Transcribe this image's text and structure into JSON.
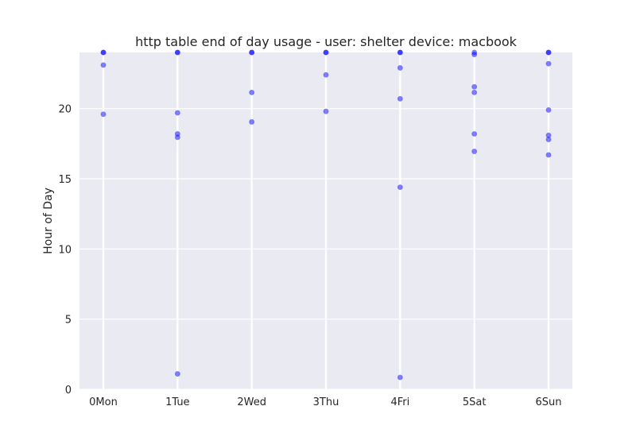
{
  "chart_data": {
    "type": "scatter",
    "title": "http table end of day usage -  user: shelter device: macbook",
    "xlabel": "",
    "ylabel": "Hour of Day",
    "categories": [
      "0Mon",
      "1Tue",
      "2Wed",
      "3Thu",
      "4Fri",
      "5Sat",
      "6Sun"
    ],
    "yticks": [
      0,
      5,
      10,
      15,
      20
    ],
    "ylim": [
      0,
      24
    ],
    "grid": true,
    "marker_color": "#0000ff",
    "plot_background": "#eaeaf2",
    "series": [
      {
        "points": [
          {
            "x": 0,
            "y": 24.0
          },
          {
            "x": 0,
            "y": 24.0
          },
          {
            "x": 0,
            "y": 23.1
          },
          {
            "x": 0,
            "y": 19.6
          },
          {
            "x": 1,
            "y": 24.0
          },
          {
            "x": 1,
            "y": 24.0
          },
          {
            "x": 1,
            "y": 19.7
          },
          {
            "x": 1,
            "y": 18.2
          },
          {
            "x": 1,
            "y": 17.95
          },
          {
            "x": 1,
            "y": 1.1
          },
          {
            "x": 2,
            "y": 24.0
          },
          {
            "x": 2,
            "y": 24.0
          },
          {
            "x": 2,
            "y": 21.15
          },
          {
            "x": 2,
            "y": 19.05
          },
          {
            "x": 3,
            "y": 24.0
          },
          {
            "x": 3,
            "y": 24.0
          },
          {
            "x": 3,
            "y": 22.4
          },
          {
            "x": 3,
            "y": 19.8
          },
          {
            "x": 4,
            "y": 24.0
          },
          {
            "x": 4,
            "y": 24.0
          },
          {
            "x": 4,
            "y": 22.9
          },
          {
            "x": 4,
            "y": 20.7
          },
          {
            "x": 4,
            "y": 14.4
          },
          {
            "x": 4,
            "y": 0.85
          },
          {
            "x": 5,
            "y": 24.0
          },
          {
            "x": 5,
            "y": 23.85
          },
          {
            "x": 5,
            "y": 21.55
          },
          {
            "x": 5,
            "y": 21.15
          },
          {
            "x": 5,
            "y": 18.2
          },
          {
            "x": 5,
            "y": 16.95
          },
          {
            "x": 6,
            "y": 24.0
          },
          {
            "x": 6,
            "y": 24.0
          },
          {
            "x": 6,
            "y": 23.2
          },
          {
            "x": 6,
            "y": 19.9
          },
          {
            "x": 6,
            "y": 18.1
          },
          {
            "x": 6,
            "y": 17.8
          },
          {
            "x": 6,
            "y": 16.7
          }
        ]
      }
    ]
  }
}
